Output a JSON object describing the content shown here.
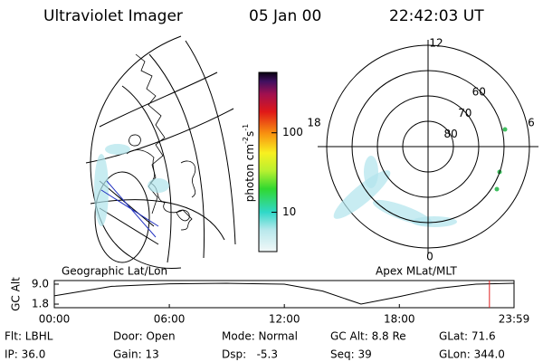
{
  "header": {
    "title": "Ultraviolet Imager",
    "date": "05 Jan 00",
    "time": "22:42:03 UT"
  },
  "globe": {
    "caption": "Geographic Lat/Lon"
  },
  "colorbar": {
    "label_parts": [
      "photon cm",
      "-2",
      "s",
      "-1"
    ],
    "log": true,
    "clim": [
      3.2,
      575
    ],
    "ticks": [
      10,
      100
    ]
  },
  "polar": {
    "caption": "Apex MLat/MLT",
    "lat_min": 50,
    "lat_labels": [
      60,
      70,
      80
    ],
    "mlt_labels": {
      "top": "12",
      "left": "18",
      "right": "6",
      "bottom": "0"
    }
  },
  "altitude": {
    "ylabel": "GC Alt",
    "ylim": [
      0.5,
      10.3
    ],
    "yticks": [
      {
        "value": 9.0,
        "label": "9.0"
      },
      {
        "value": 1.8,
        "label": "1.8"
      }
    ],
    "xlim": [
      0,
      23.983
    ],
    "xticks": [
      {
        "value": 0,
        "label": "00:00"
      },
      {
        "value": 6,
        "label": "06:00"
      },
      {
        "value": 12,
        "label": "12:00"
      },
      {
        "value": 18,
        "label": "18:00"
      },
      {
        "value": 23.983,
        "label": "23:59"
      }
    ],
    "x": [
      0,
      3,
      6,
      9,
      12,
      14,
      16,
      18,
      20,
      22,
      23.983
    ],
    "values": [
      4.8,
      8.2,
      9.1,
      9.3,
      9.0,
      6.5,
      1.8,
      4.5,
      7.5,
      9.0,
      9.3
    ],
    "marker": 22.7,
    "marker_color": "#e02020"
  },
  "info": {
    "rows": [
      [
        "Flt: LBHL",
        "Door: Open",
        "Mode: Normal",
        "GC Alt: 8.8 Re",
        "GLat: 71.6"
      ],
      [
        "IP: 36.0",
        "Gain: 13",
        "Dsp:   -5.3",
        "Seq: 39",
        "GLon: 344.0"
      ]
    ]
  }
}
